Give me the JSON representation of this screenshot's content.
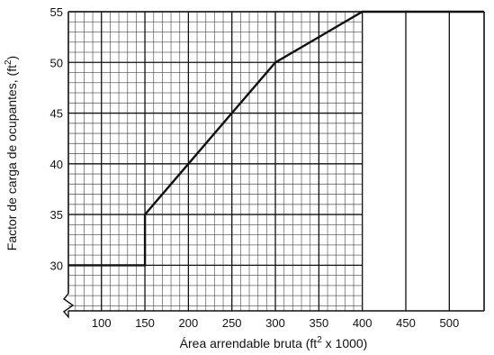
{
  "chart_data": {
    "type": "line",
    "xlabel_parts": {
      "before": "Área arrendable bruta (ft",
      "sup": "2",
      "after": " x 1000)"
    },
    "ylabel_parts": {
      "before": "Factor de carga de ocupantes, (ft",
      "sup": "2",
      "after": ")"
    },
    "xlim": [
      62,
      540
    ],
    "ylim": [
      25.5,
      55
    ],
    "x_ticks": [
      100,
      150,
      200,
      250,
      300,
      350,
      400,
      450,
      500
    ],
    "y_ticks": [
      30,
      35,
      40,
      45,
      50,
      55
    ],
    "axis_break": "bottom-left",
    "grid": "dense-left",
    "series": [
      {
        "color": "#111111",
        "x": [
          62,
          150,
          150,
          200,
          250,
          300,
          350,
          400,
          450,
          500,
          540
        ],
        "y": [
          30,
          30,
          35,
          40,
          45,
          50,
          52.5,
          55,
          55,
          55,
          55
        ]
      }
    ]
  }
}
